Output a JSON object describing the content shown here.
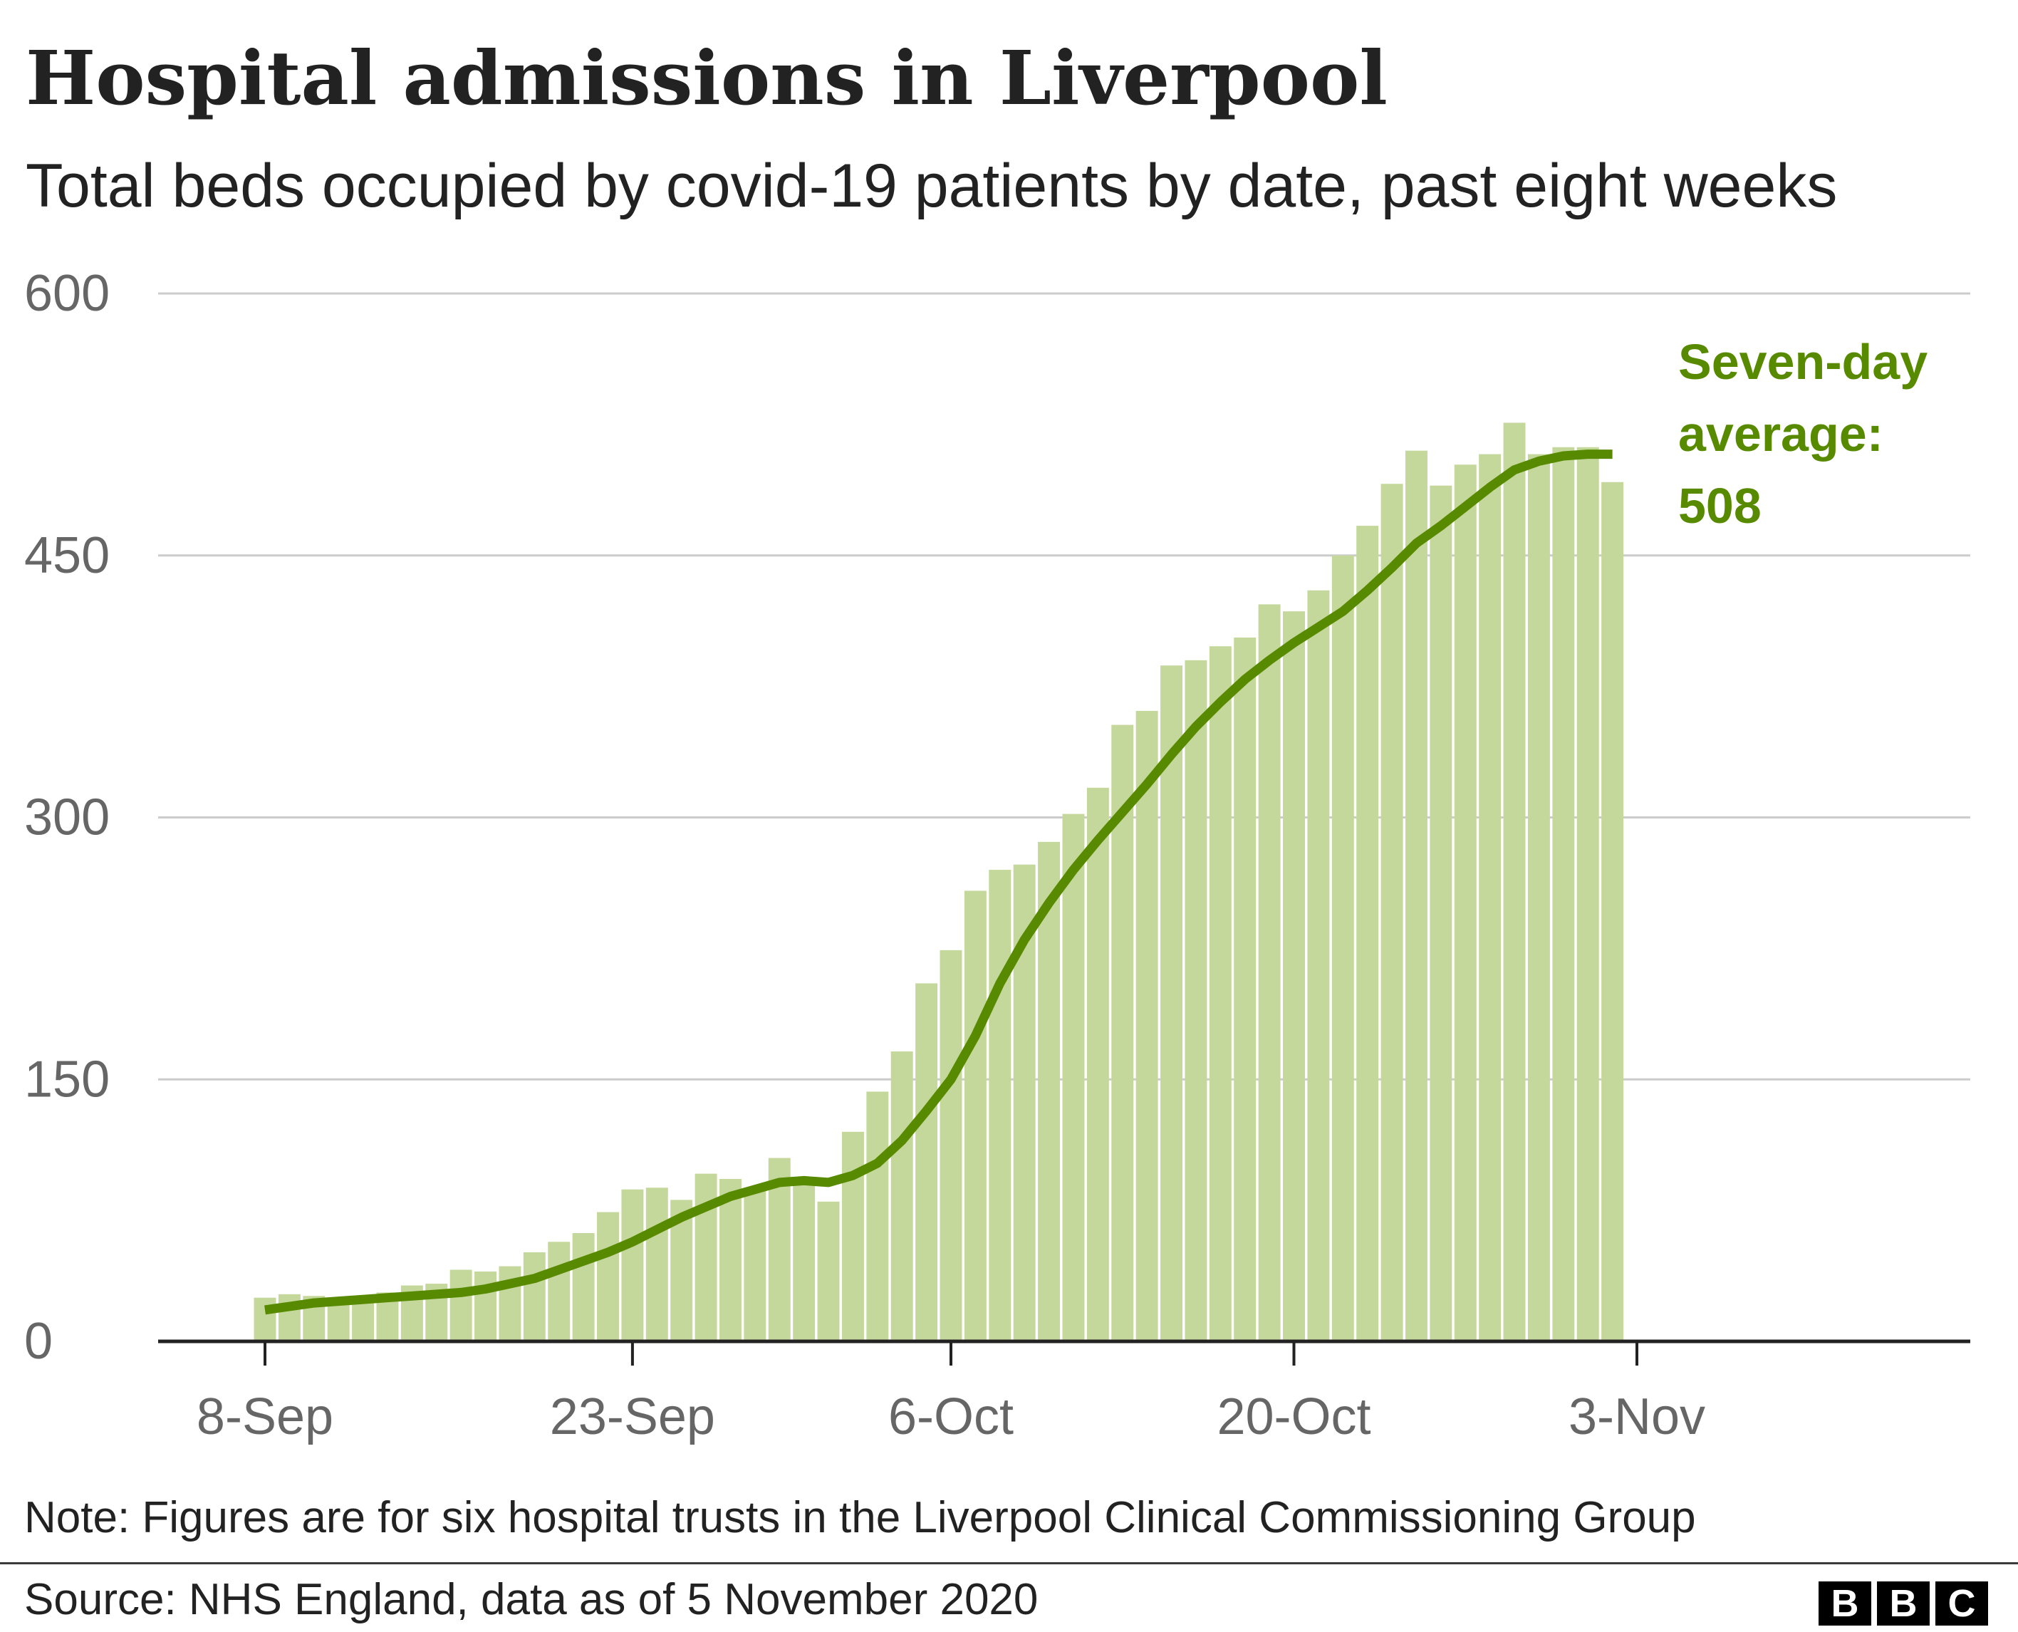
{
  "header": {
    "title": "Hospital admissions in Liverpool",
    "subtitle": "Total beds occupied by covid-19 patients by date, past eight weeks"
  },
  "footer": {
    "note": "Note: Figures are for six hospital trusts in the Liverpool Clinical Commissioning Group",
    "source": "Source: NHS England, data as of 5 November 2020",
    "logo_letters": [
      "B",
      "B",
      "C"
    ]
  },
  "colors": {
    "bar": "#c5d89b",
    "line": "#588a00",
    "grid": "#cccccc",
    "axis": "#222222",
    "tick_text": "#666666"
  },
  "chart_data": {
    "type": "bar",
    "title": "Hospital admissions in Liverpool",
    "subtitle": "Total beds occupied by covid-19 patients by date, past eight weeks",
    "x_start": "2020-09-08",
    "x_end": "2020-11-03",
    "x_ticks": [
      "8-Sep",
      "23-Sep",
      "6-Oct",
      "20-Oct",
      "3-Nov"
    ],
    "x_tick_dates": [
      "2020-09-08",
      "2020-09-23",
      "2020-10-06",
      "2020-10-20",
      "2020-11-03"
    ],
    "y_ticks": [
      0,
      150,
      300,
      450,
      600
    ],
    "ylim": [
      0,
      600
    ],
    "grid": true,
    "series": [
      {
        "name": "Beds occupied",
        "type": "bar",
        "values": [
          25,
          27,
          26,
          25,
          26,
          28,
          32,
          33,
          41,
          40,
          43,
          51,
          57,
          62,
          74,
          87,
          88,
          81,
          96,
          93,
          88,
          105,
          90,
          80,
          120,
          143,
          166,
          205,
          224,
          258,
          270,
          273,
          286,
          302,
          317,
          353,
          361,
          387,
          390,
          398,
          403,
          422,
          418,
          430,
          450,
          467,
          491,
          510,
          490,
          502,
          508,
          526,
          508,
          512,
          512,
          492
        ]
      },
      {
        "name": "Seven-day average",
        "type": "line",
        "values": [
          18,
          20,
          22,
          23,
          24,
          25,
          26,
          27,
          28,
          30,
          33,
          36,
          41,
          46,
          51,
          57,
          64,
          71,
          77,
          83,
          87,
          91,
          92,
          91,
          95,
          102,
          115,
          132,
          150,
          175,
          205,
          230,
          251,
          270,
          287,
          303,
          319,
          336,
          352,
          366,
          379,
          390,
          400,
          409,
          418,
          430,
          443,
          457,
          467,
          478,
          489,
          499,
          504,
          507,
          508,
          508
        ]
      }
    ],
    "annotation": {
      "lines": [
        "Seven-day",
        "average:",
        "508"
      ]
    }
  }
}
